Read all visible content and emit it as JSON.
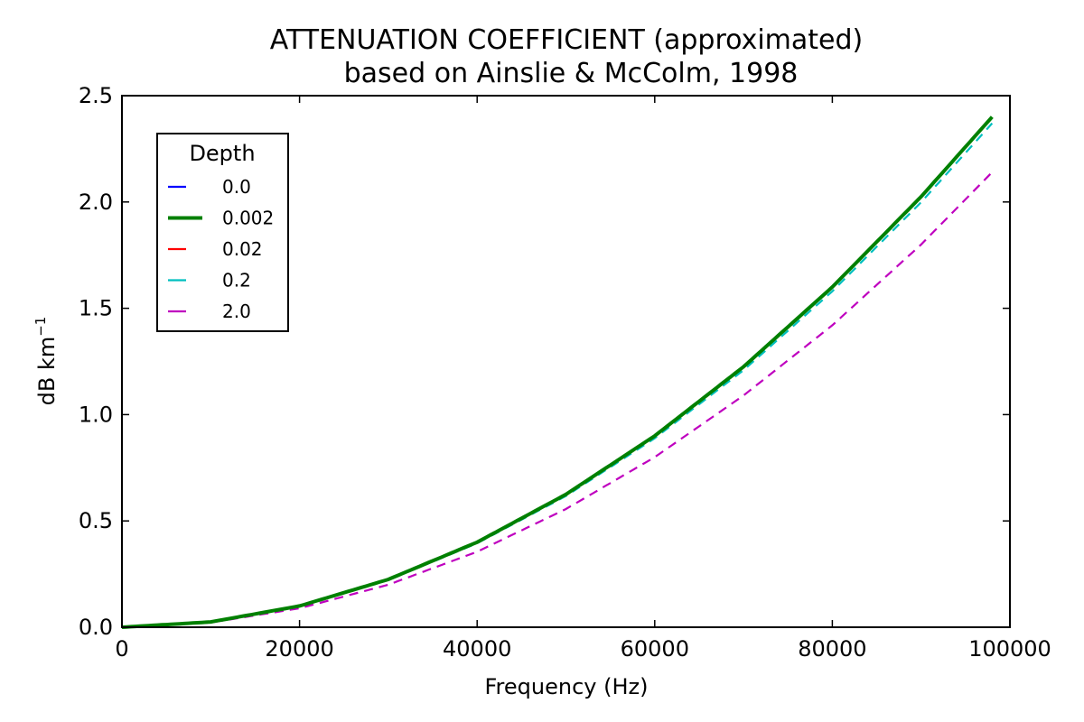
{
  "chart_data": {
    "type": "line",
    "title": "ATTENUATION COEFFICIENT (approximated)",
    "subtitle": "based on Ainslie & McColm, 1998",
    "xlabel": "Frequency (Hz)",
    "ylabel": "dB km",
    "ylabel_superscript": "−1",
    "xlim": [
      0,
      100000
    ],
    "ylim": [
      0,
      2.5
    ],
    "xticks": [
      "0",
      "20000",
      "40000",
      "60000",
      "80000",
      "100000"
    ],
    "yticks": [
      "0.0",
      "0.5",
      "1.0",
      "1.5",
      "2.0",
      "2.5"
    ],
    "grid": false,
    "legend": {
      "title": "Depth",
      "placement": "upper-left"
    },
    "x": [
      0,
      10000,
      20000,
      30000,
      40000,
      50000,
      60000,
      70000,
      80000,
      90000,
      98000
    ],
    "series": [
      {
        "name": "0.0",
        "color": "#0000ff",
        "style": "dashed",
        "values": [
          0,
          0.025,
          0.1,
          0.225,
          0.4,
          0.625,
          0.9,
          1.225,
          1.6,
          2.025,
          2.4
        ]
      },
      {
        "name": "0.002",
        "color": "#008000",
        "style": "solid",
        "values": [
          0,
          0.025,
          0.1,
          0.225,
          0.4,
          0.625,
          0.9,
          1.225,
          1.6,
          2.025,
          2.4
        ]
      },
      {
        "name": "0.02",
        "color": "#ff0000",
        "style": "dashed",
        "values": [
          0,
          0.025,
          0.1,
          0.225,
          0.4,
          0.625,
          0.9,
          1.225,
          1.6,
          2.024,
          2.4
        ]
      },
      {
        "name": "0.2",
        "color": "#00bfbf",
        "style": "dashed",
        "values": [
          0,
          0.025,
          0.099,
          0.222,
          0.395,
          0.617,
          0.889,
          1.209,
          1.58,
          1.999,
          2.37
        ]
      },
      {
        "name": "2.0",
        "color": "#bf00bf",
        "style": "dashed",
        "values": [
          0,
          0.022,
          0.089,
          0.2,
          0.355,
          0.556,
          0.8,
          1.09,
          1.42,
          1.8,
          2.14
        ]
      }
    ]
  }
}
